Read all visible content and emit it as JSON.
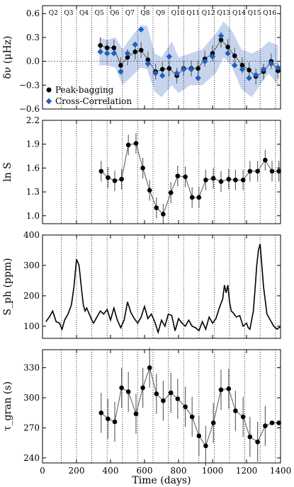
{
  "chart_data": [
    {
      "type": "scatter",
      "ylabel": "δν (μHz)",
      "ylim": [
        -0.6,
        0.7
      ],
      "yticks": [
        -0.6,
        -0.3,
        0.0,
        0.3,
        0.6
      ],
      "ytick_labels": [
        "−0.6",
        "−0.3",
        "0.0",
        "0.3",
        "0.6"
      ],
      "quarter_labels": [
        "Q2",
        "Q3",
        "Q4",
        "Q5",
        "Q6",
        "Q7",
        "Q8",
        "Q9",
        "Q10",
        "Q11",
        "Q12",
        "Q13",
        "Q14",
        "Q15",
        "Q16"
      ],
      "band_color": "#c6d4ee",
      "band": [
        {
          "x": 335,
          "lo": -0.05,
          "hi": 0.3
        },
        {
          "x": 380,
          "lo": -0.05,
          "hi": 0.27
        },
        {
          "x": 430,
          "lo": -0.08,
          "hi": 0.3
        },
        {
          "x": 470,
          "lo": -0.3,
          "hi": 0.15
        },
        {
          "x": 520,
          "lo": -0.2,
          "hi": 0.3
        },
        {
          "x": 575,
          "lo": -0.08,
          "hi": 0.45
        },
        {
          "x": 615,
          "lo": -0.1,
          "hi": 0.45
        },
        {
          "x": 660,
          "lo": -0.38,
          "hi": 0.1
        },
        {
          "x": 700,
          "lo": -0.45,
          "hi": 0.05
        },
        {
          "x": 760,
          "lo": -0.3,
          "hi": 0.25
        },
        {
          "x": 800,
          "lo": -0.4,
          "hi": 0.05
        },
        {
          "x": 870,
          "lo": -0.3,
          "hi": 0.1
        },
        {
          "x": 940,
          "lo": -0.3,
          "hi": 0.15
        },
        {
          "x": 1020,
          "lo": -0.15,
          "hi": 0.35
        },
        {
          "x": 1065,
          "lo": 0.05,
          "hi": 0.5
        },
        {
          "x": 1110,
          "lo": -0.05,
          "hi": 0.4
        },
        {
          "x": 1170,
          "lo": -0.35,
          "hi": 0.15
        },
        {
          "x": 1230,
          "lo": -0.45,
          "hi": 0.1
        },
        {
          "x": 1280,
          "lo": -0.3,
          "hi": 0.15
        },
        {
          "x": 1330,
          "lo": -0.15,
          "hi": 0.25
        },
        {
          "x": 1385,
          "lo": -0.3,
          "hi": 0.2
        }
      ],
      "series": [
        {
          "name": "Peak-bagging",
          "color": "#000000",
          "x": [
            340,
            380,
            420,
            460,
            500,
            545,
            580,
            620,
            665,
            705,
            745,
            790,
            830,
            875,
            915,
            955,
            1000,
            1050,
            1090,
            1130,
            1175,
            1215,
            1255,
            1300,
            1345,
            1385
          ],
          "y": [
            0.2,
            0.17,
            0.17,
            -0.05,
            0.05,
            0.12,
            0.14,
            0.02,
            -0.13,
            -0.1,
            -0.09,
            -0.18,
            -0.09,
            -0.09,
            -0.09,
            0.03,
            0.1,
            0.27,
            0.18,
            0.07,
            -0.05,
            -0.11,
            -0.19,
            -0.13,
            0.0,
            -0.12
          ],
          "err": [
            0.1,
            0.1,
            0.1,
            0.1,
            0.1,
            0.1,
            0.1,
            0.1,
            0.1,
            0.1,
            0.1,
            0.1,
            0.1,
            0.1,
            0.1,
            0.1,
            0.1,
            0.1,
            0.1,
            0.1,
            0.1,
            0.1,
            0.1,
            0.1,
            0.1,
            0.1
          ]
        },
        {
          "name": "Cross-Correlation",
          "color": "#1f5fbf",
          "x": [
            340,
            380,
            420,
            460,
            500,
            545,
            580,
            620,
            665,
            705,
            745,
            790,
            830,
            875,
            915,
            955,
            1000,
            1050,
            1090,
            1130,
            1175,
            1215,
            1255,
            1300,
            1345,
            1385
          ],
          "y": [
            0.12,
            0.1,
            0.1,
            -0.13,
            0.1,
            0.21,
            0.4,
            -0.03,
            -0.15,
            -0.18,
            0.06,
            -0.15,
            -0.1,
            -0.1,
            -0.21,
            0.0,
            0.06,
            0.32,
            0.1,
            -0.05,
            -0.1,
            -0.21,
            -0.17,
            -0.1,
            -0.03,
            -0.08
          ]
        }
      ]
    },
    {
      "type": "line",
      "ylabel": "ln S",
      "ylim": [
        0.9,
        2.2
      ],
      "yticks": [
        1.0,
        1.3,
        1.6,
        1.9,
        2.2
      ],
      "ytick_labels": [
        "1.0",
        "1.3",
        "1.6",
        "1.9",
        "2.2"
      ],
      "series": [
        {
          "name": "",
          "color": "#000000",
          "x": [
            345,
            385,
            425,
            465,
            505,
            550,
            590,
            630,
            670,
            710,
            755,
            795,
            840,
            880,
            920,
            960,
            1005,
            1050,
            1095,
            1135,
            1180,
            1220,
            1265,
            1310,
            1350,
            1390
          ],
          "y": [
            1.56,
            1.48,
            1.44,
            1.46,
            1.89,
            1.91,
            1.6,
            1.32,
            1.1,
            1.02,
            1.29,
            1.5,
            1.49,
            1.23,
            1.23,
            1.45,
            1.47,
            1.43,
            1.46,
            1.45,
            1.45,
            1.56,
            1.56,
            1.7,
            1.56,
            1.56
          ],
          "err": [
            0.13,
            0.13,
            0.13,
            0.13,
            0.13,
            0.13,
            0.13,
            0.13,
            0.13,
            0.13,
            0.13,
            0.13,
            0.13,
            0.13,
            0.13,
            0.13,
            0.13,
            0.13,
            0.13,
            0.13,
            0.13,
            0.13,
            0.13,
            0.13,
            0.13,
            0.13
          ]
        }
      ]
    },
    {
      "type": "line",
      "ylabel": "S_ph (ppm)",
      "ylim": [
        60,
        400
      ],
      "yticks": [
        100,
        200,
        300,
        400
      ],
      "ytick_labels": [
        "100",
        "200",
        "300",
        "400"
      ],
      "series": [
        {
          "name": "",
          "color": "#000000",
          "x": [
            20,
            40,
            60,
            80,
            100,
            115,
            130,
            150,
            170,
            185,
            200,
            215,
            230,
            240,
            250,
            260,
            275,
            290,
            300,
            320,
            340,
            360,
            380,
            400,
            420,
            440,
            460,
            480,
            500,
            520,
            540,
            560,
            580,
            600,
            620,
            640,
            660,
            680,
            700,
            720,
            740,
            760,
            780,
            800,
            820,
            840,
            860,
            880,
            900,
            920,
            940,
            960,
            980,
            1000,
            1020,
            1040,
            1060,
            1070,
            1080,
            1090,
            1100,
            1110,
            1120,
            1140,
            1160,
            1180,
            1200,
            1210,
            1220,
            1230,
            1240,
            1250,
            1260,
            1270,
            1280,
            1300,
            1320,
            1340,
            1360,
            1380,
            1400
          ],
          "y": [
            115,
            130,
            150,
            115,
            110,
            90,
            120,
            140,
            170,
            230,
            320,
            300,
            220,
            170,
            150,
            160,
            140,
            120,
            110,
            130,
            150,
            140,
            155,
            120,
            160,
            120,
            95,
            120,
            180,
            145,
            125,
            110,
            130,
            165,
            125,
            140,
            115,
            80,
            120,
            100,
            140,
            135,
            85,
            125,
            110,
            100,
            120,
            100,
            95,
            85,
            115,
            90,
            130,
            110,
            125,
            160,
            190,
            235,
            210,
            235,
            180,
            150,
            145,
            130,
            135,
            100,
            110,
            95,
            90,
            120,
            150,
            220,
            300,
            350,
            370,
            230,
            140,
            120,
            100,
            90,
            100
          ]
        }
      ]
    },
    {
      "type": "line",
      "ylabel": "τ_gran (s)",
      "xlabel": "Time (days)",
      "ylim": [
        235,
        348
      ],
      "yticks": [
        240,
        270,
        300,
        330
      ],
      "ytick_labels": [
        "240",
        "270",
        "300",
        "330"
      ],
      "xlim": [
        0,
        1400
      ],
      "xticks": [
        0,
        200,
        400,
        600,
        800,
        1000,
        1200,
        1400
      ],
      "xtick_labels": [
        "0",
        "200",
        "400",
        "600",
        "800",
        "1000",
        "1200",
        "1400"
      ],
      "series": [
        {
          "name": "",
          "color": "#000000",
          "x": [
            345,
            385,
            425,
            465,
            505,
            550,
            590,
            630,
            670,
            710,
            755,
            795,
            840,
            880,
            920,
            960,
            1005,
            1050,
            1095,
            1135,
            1180,
            1220,
            1265,
            1310,
            1350,
            1390
          ],
          "y": [
            285,
            279,
            276,
            310,
            306,
            284,
            310,
            330,
            304,
            297,
            305,
            299,
            291,
            281,
            262,
            252,
            275,
            308,
            309,
            287,
            281,
            261,
            256,
            272,
            275,
            275
          ],
          "err": [
            20,
            20,
            20,
            20,
            20,
            20,
            20,
            20,
            20,
            20,
            20,
            20,
            20,
            20,
            20,
            20,
            20,
            20,
            20,
            20,
            20,
            20,
            20,
            20,
            0,
            0
          ]
        }
      ]
    }
  ],
  "quarter_boundaries": [
    110,
    200,
    290,
    380,
    470,
    560,
    650,
    740,
    830,
    920,
    1010,
    1100,
    1190,
    1280,
    1370
  ]
}
